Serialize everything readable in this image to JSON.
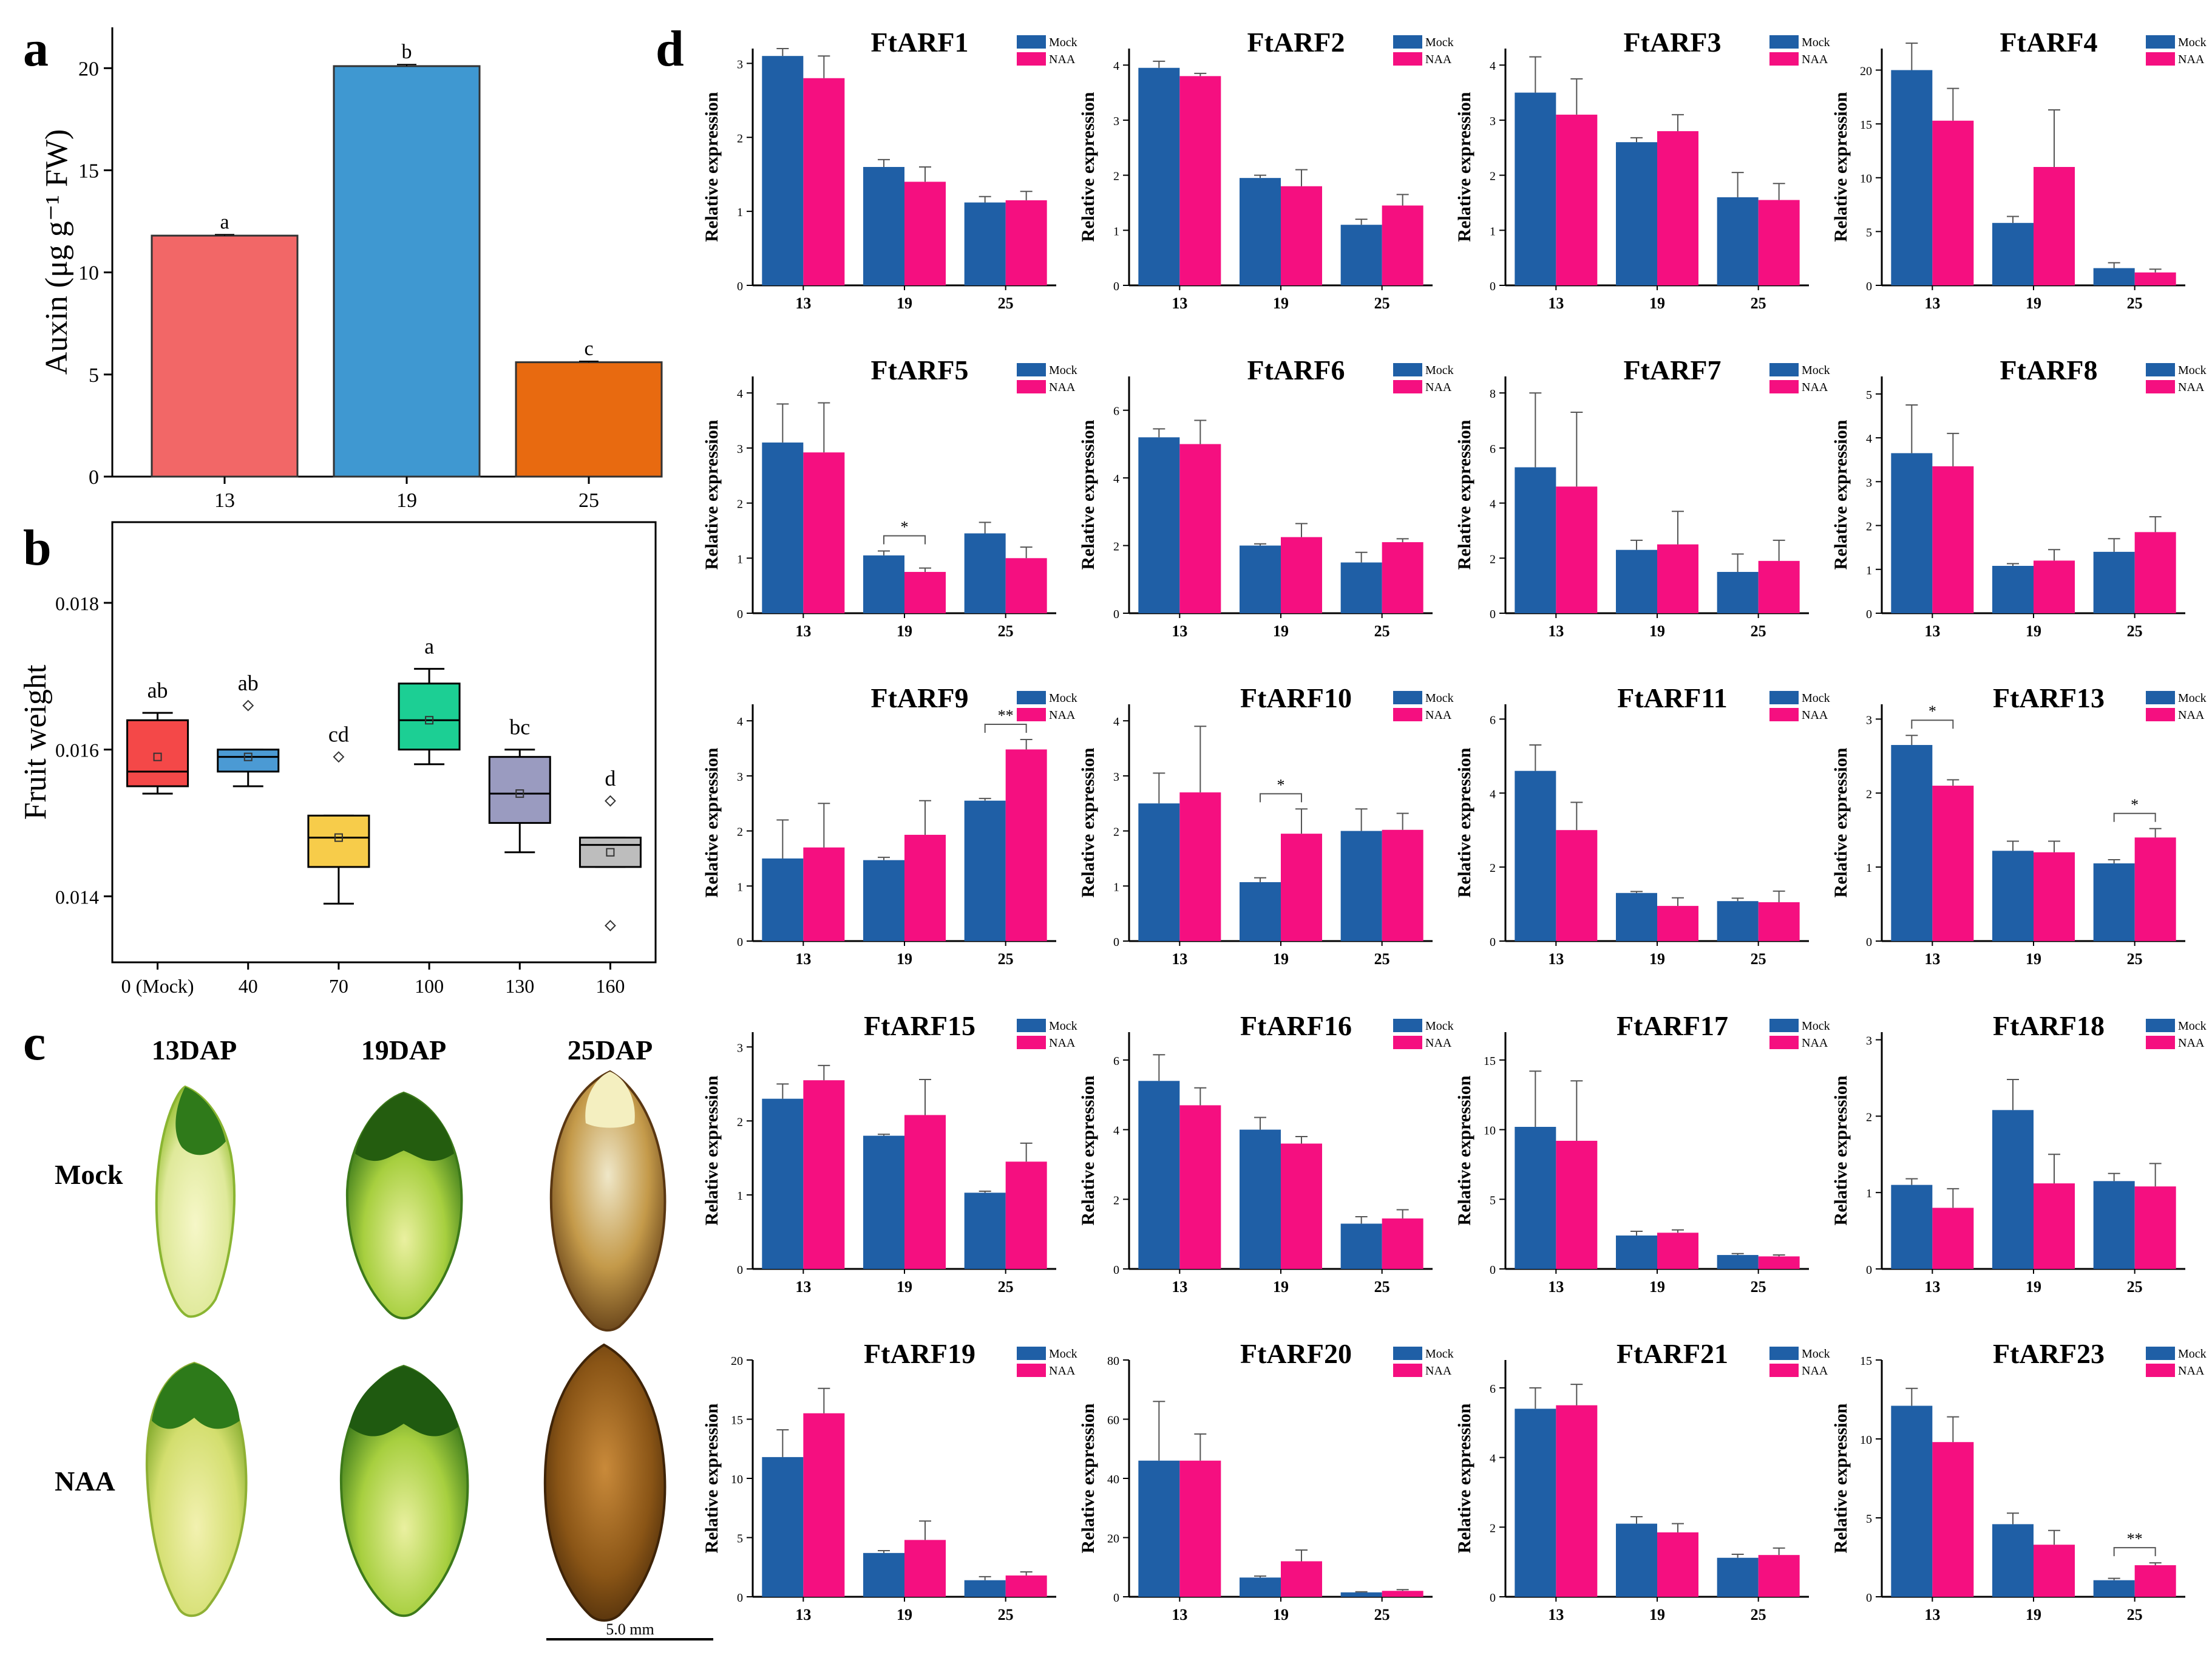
{
  "figure": {
    "panel_labels": [
      "a",
      "b",
      "c",
      "d"
    ],
    "colors": {
      "mock": "#1f5fa6",
      "naa": "#f50f80",
      "auxin_13": "#f26767",
      "auxin_19": "#3f98d1",
      "auxin_25": "#e86a10",
      "box_0": "#f44848",
      "box_40": "#4b9ad4",
      "box_70": "#f7cc4a",
      "box_100": "#1ccf94",
      "box_130": "#9a9bc0",
      "box_160": "#bdbdbd"
    }
  },
  "chart_data": [
    {
      "id": "a",
      "type": "bar",
      "ylabel": "Auxin (μg g⁻¹ FW)",
      "categories": [
        "13",
        "19",
        "25"
      ],
      "values": [
        11.8,
        20.1,
        5.6
      ],
      "errors": [
        0.05,
        0.08,
        0.05
      ],
      "letters": [
        "a",
        "b",
        "c"
      ],
      "ylim": [
        0,
        22
      ],
      "yticks": [
        0,
        5,
        10,
        15,
        20
      ]
    },
    {
      "id": "b",
      "type": "box",
      "ylabel": "Fruit weight",
      "categories": [
        "0 (Mock)",
        "40",
        "70",
        "100",
        "130",
        "160"
      ],
      "boxes": [
        {
          "min": 0.0154,
          "q1": 0.0155,
          "median": 0.0157,
          "q3": 0.0164,
          "max": 0.0165,
          "mean": 0.0159,
          "outliers": []
        },
        {
          "min": 0.0155,
          "q1": 0.0157,
          "median": 0.0159,
          "q3": 0.016,
          "max": 0.016,
          "mean": 0.0159,
          "outliers": [
            0.0166
          ]
        },
        {
          "min": 0.0139,
          "q1": 0.0144,
          "median": 0.0148,
          "q3": 0.0151,
          "max": 0.0151,
          "mean": 0.0148,
          "outliers": [
            0.0159
          ]
        },
        {
          "min": 0.0158,
          "q1": 0.016,
          "median": 0.0164,
          "q3": 0.0169,
          "max": 0.0171,
          "mean": 0.0164,
          "outliers": []
        },
        {
          "min": 0.0146,
          "q1": 0.015,
          "median": 0.0154,
          "q3": 0.0159,
          "max": 0.016,
          "mean": 0.0154,
          "outliers": []
        },
        {
          "min": 0.0144,
          "q1": 0.0144,
          "median": 0.0147,
          "q3": 0.0148,
          "max": 0.0148,
          "mean": 0.0146,
          "outliers": [
            0.0153,
            0.0136
          ]
        }
      ],
      "letters": [
        "ab",
        "ab",
        "cd",
        "a",
        "bc",
        "d"
      ],
      "ylim": [
        0.0131,
        0.0191
      ],
      "yticks": [
        0.014,
        0.016,
        0.018
      ],
      "ytick_labels": [
        "0.014",
        "0.016",
        "0.018"
      ]
    },
    {
      "id": "d",
      "type": "bar",
      "ylabel": "Relative expression",
      "categories": [
        "13",
        "19",
        "25"
      ],
      "legend": [
        "Mock",
        "NAA"
      ],
      "panels": [
        {
          "title": "FtARF1",
          "ymax": 3.2,
          "ticks": [
            0,
            1,
            2,
            3
          ],
          "mock": [
            3.1,
            1.6,
            1.12
          ],
          "mockErr": [
            0.1,
            0.1,
            0.08
          ],
          "naa": [
            2.8,
            1.4,
            1.15
          ],
          "naaErr": [
            0.3,
            0.2,
            0.12
          ],
          "sig": []
        },
        {
          "title": "FtARF2",
          "ymax": 4.3,
          "ticks": [
            0,
            1,
            2,
            3,
            4
          ],
          "mock": [
            3.95,
            1.95,
            1.1
          ],
          "mockErr": [
            0.12,
            0.05,
            0.1
          ],
          "naa": [
            3.8,
            1.8,
            1.45
          ],
          "naaErr": [
            0.05,
            0.3,
            0.2
          ],
          "sig": []
        },
        {
          "title": "FtARF3",
          "ymax": 4.3,
          "ticks": [
            0,
            1,
            2,
            3,
            4
          ],
          "mock": [
            3.5,
            2.6,
            1.6
          ],
          "mockErr": [
            0.65,
            0.08,
            0.45
          ],
          "naa": [
            3.1,
            2.8,
            1.55
          ],
          "naaErr": [
            0.65,
            0.3,
            0.3
          ],
          "sig": []
        },
        {
          "title": "FtARF4",
          "ymax": 22,
          "ticks": [
            0,
            5,
            10,
            15,
            20
          ],
          "mock": [
            20,
            5.8,
            1.6
          ],
          "mockErr": [
            2.5,
            0.6,
            0.5
          ],
          "naa": [
            15.3,
            11,
            1.2
          ],
          "naaErr": [
            3,
            5.3,
            0.3
          ],
          "sig": []
        },
        {
          "title": "FtARF5",
          "ymax": 4.3,
          "ticks": [
            0,
            1,
            2,
            3,
            4
          ],
          "mock": [
            3.1,
            1.05,
            1.45
          ],
          "mockErr": [
            0.7,
            0.08,
            0.2
          ],
          "naa": [
            2.92,
            0.75,
            1.0
          ],
          "naaErr": [
            0.9,
            0.07,
            0.2
          ],
          "sig": [
            {
              "group": 1,
              "label": "*"
            }
          ]
        },
        {
          "title": "FtARF6",
          "ymax": 7,
          "ticks": [
            0,
            2,
            4,
            6
          ],
          "mock": [
            5.2,
            2.0,
            1.5
          ],
          "mockErr": [
            0.25,
            0.05,
            0.3
          ],
          "naa": [
            5.0,
            2.25,
            2.1
          ],
          "naaErr": [
            0.7,
            0.4,
            0.1
          ],
          "sig": []
        },
        {
          "title": "FtARF7",
          "ymax": 8.6,
          "ticks": [
            0,
            2,
            4,
            6,
            8
          ],
          "mock": [
            5.3,
            2.3,
            1.5
          ],
          "mockErr": [
            2.7,
            0.35,
            0.65
          ],
          "naa": [
            4.6,
            2.5,
            1.9
          ],
          "naaErr": [
            2.7,
            1.2,
            0.75
          ],
          "sig": []
        },
        {
          "title": "FtARF8",
          "ymax": 5.4,
          "ticks": [
            0,
            1,
            2,
            3,
            4,
            5
          ],
          "mock": [
            3.65,
            1.08,
            1.4
          ],
          "mockErr": [
            1.1,
            0.05,
            0.3
          ],
          "naa": [
            3.35,
            1.2,
            1.85
          ],
          "naaErr": [
            0.75,
            0.25,
            0.35
          ],
          "sig": []
        },
        {
          "title": "FtARF9",
          "ymax": 4.3,
          "ticks": [
            0,
            1,
            2,
            3,
            4
          ],
          "mock": [
            1.5,
            1.47,
            2.55
          ],
          "mockErr": [
            0.7,
            0.05,
            0.04
          ],
          "naa": [
            1.7,
            1.93,
            3.48
          ],
          "naaErr": [
            0.8,
            0.62,
            0.18
          ],
          "sig": [
            {
              "group": 2,
              "label": "**"
            }
          ]
        },
        {
          "title": "FtARF10",
          "ymax": 4.3,
          "ticks": [
            0,
            1,
            2,
            3,
            4
          ],
          "mock": [
            2.5,
            1.07,
            2.0
          ],
          "mockErr": [
            0.55,
            0.08,
            0.4
          ],
          "naa": [
            2.7,
            1.95,
            2.02
          ],
          "naaErr": [
            1.2,
            0.45,
            0.3
          ],
          "sig": [
            {
              "group": 1,
              "label": "*"
            }
          ]
        },
        {
          "title": "FtARF11",
          "ymax": 6.4,
          "ticks": [
            0,
            2,
            4,
            6
          ],
          "mock": [
            4.6,
            1.3,
            1.08
          ],
          "mockErr": [
            0.7,
            0.04,
            0.08
          ],
          "naa": [
            3.0,
            0.95,
            1.05
          ],
          "naaErr": [
            0.75,
            0.22,
            0.3
          ],
          "sig": []
        },
        {
          "title": "FtARF13",
          "ymax": 3.2,
          "ticks": [
            0,
            1,
            2,
            3
          ],
          "mock": [
            2.65,
            1.22,
            1.05
          ],
          "mockErr": [
            0.13,
            0.13,
            0.05
          ],
          "naa": [
            2.1,
            1.2,
            1.4
          ],
          "naaErr": [
            0.08,
            0.15,
            0.12
          ],
          "sig": [
            {
              "group": 0,
              "label": "*"
            },
            {
              "group": 2,
              "label": "*"
            }
          ]
        },
        {
          "title": "FtARF15",
          "ymax": 3.2,
          "ticks": [
            0,
            1,
            2,
            3
          ],
          "mock": [
            2.3,
            1.8,
            1.03
          ],
          "mockErr": [
            0.2,
            0.02,
            0.02
          ],
          "naa": [
            2.55,
            2.08,
            1.45
          ],
          "naaErr": [
            0.2,
            0.48,
            0.25
          ],
          "sig": []
        },
        {
          "title": "FtARF16",
          "ymax": 6.8,
          "ticks": [
            0,
            2,
            4,
            6
          ],
          "mock": [
            5.4,
            4.0,
            1.3
          ],
          "mockErr": [
            0.75,
            0.35,
            0.2
          ],
          "naa": [
            4.7,
            3.6,
            1.45
          ],
          "naaErr": [
            0.5,
            0.2,
            0.25
          ],
          "sig": []
        },
        {
          "title": "FtARF17",
          "ymax": 17,
          "ticks": [
            0,
            5,
            10,
            15
          ],
          "mock": [
            10.2,
            2.4,
            1.0
          ],
          "mockErr": [
            4.0,
            0.3,
            0.1
          ],
          "naa": [
            9.2,
            2.6,
            0.9
          ],
          "naaErr": [
            4.3,
            0.2,
            0.1
          ],
          "sig": []
        },
        {
          "title": "FtARF18",
          "ymax": 3.1,
          "ticks": [
            0,
            1,
            2,
            3
          ],
          "mock": [
            1.1,
            2.08,
            1.15
          ],
          "mockErr": [
            0.08,
            0.4,
            0.1
          ],
          "naa": [
            0.8,
            1.12,
            1.08
          ],
          "naaErr": [
            0.25,
            0.38,
            0.3
          ],
          "sig": []
        },
        {
          "title": "FtARF19",
          "ymax": 20,
          "ticks": [
            0,
            5,
            10,
            15,
            20
          ],
          "mock": [
            11.8,
            3.7,
            1.4
          ],
          "mockErr": [
            2.3,
            0.2,
            0.3
          ],
          "naa": [
            15.5,
            4.8,
            1.8
          ],
          "naaErr": [
            2.1,
            1.6,
            0.3
          ],
          "sig": []
        },
        {
          "title": "FtARF20",
          "ymax": 80,
          "ticks": [
            0,
            20,
            40,
            60,
            80
          ],
          "mock": [
            46,
            6.5,
            1.5
          ],
          "mockErr": [
            20,
            0.5,
            0.2
          ],
          "naa": [
            46,
            12,
            2
          ],
          "naaErr": [
            9,
            3.8,
            0.4
          ],
          "sig": []
        },
        {
          "title": "FtARF21",
          "ymax": 6.8,
          "ticks": [
            0,
            2,
            4,
            6
          ],
          "mock": [
            5.4,
            2.1,
            1.12
          ],
          "mockErr": [
            0.6,
            0.2,
            0.1
          ],
          "naa": [
            5.5,
            1.85,
            1.2
          ],
          "naaErr": [
            0.6,
            0.25,
            0.2
          ],
          "sig": []
        },
        {
          "title": "FtARF23",
          "ymax": 15,
          "ticks": [
            0,
            5,
            10,
            15
          ],
          "mock": [
            12.1,
            4.6,
            1.05
          ],
          "mockErr": [
            1.1,
            0.7,
            0.12
          ],
          "naa": [
            9.8,
            3.3,
            2.0
          ],
          "naaErr": [
            1.6,
            0.9,
            0.15
          ],
          "sig": [
            {
              "group": 2,
              "label": "**"
            }
          ]
        }
      ]
    }
  ],
  "panel_c": {
    "columns": [
      "13DAP",
      "19DAP",
      "25DAP"
    ],
    "rows": [
      "Mock",
      "NAA"
    ],
    "scale_bar": "5.0 mm"
  }
}
